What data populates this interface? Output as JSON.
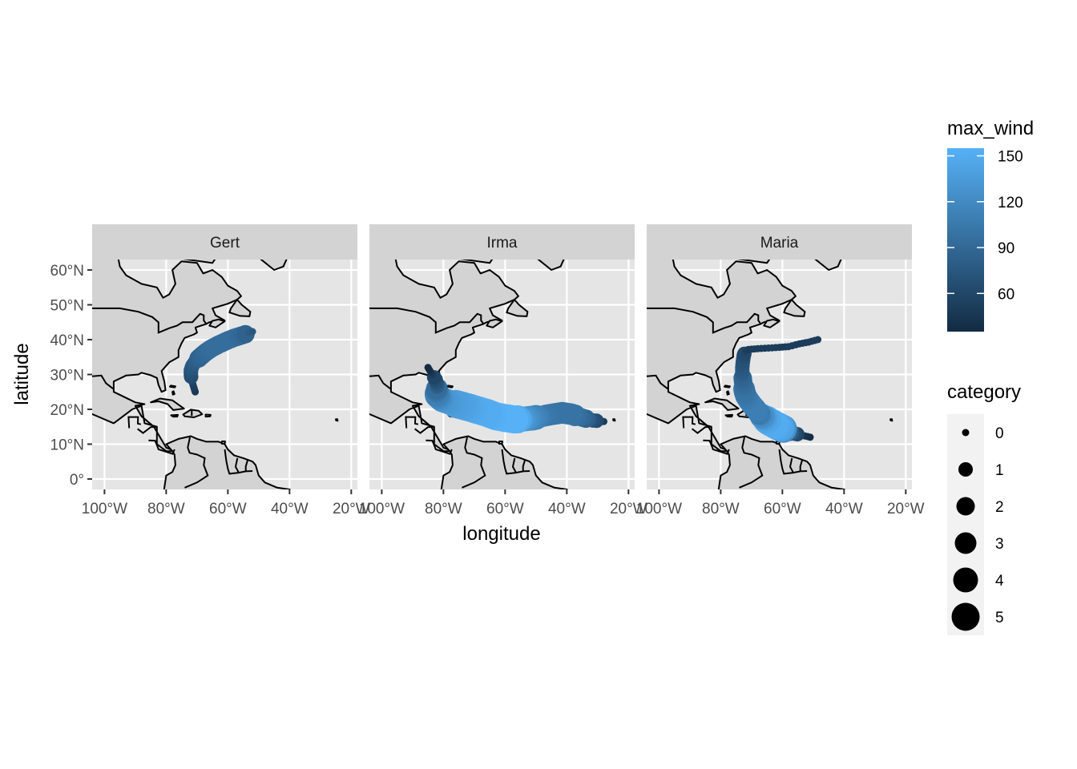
{
  "chart_data": {
    "type": "scatter",
    "facet_by": "storm",
    "panels": [
      {
        "label": "Gert",
        "points": [
          {
            "lon": -70.6,
            "lat": 25.0,
            "wind": 45,
            "cat": 0
          },
          {
            "lon": -71.0,
            "lat": 26.2,
            "wind": 50,
            "cat": 0
          },
          {
            "lon": -71.4,
            "lat": 27.3,
            "wind": 55,
            "cat": 0
          },
          {
            "lon": -71.7,
            "lat": 28.5,
            "wind": 60,
            "cat": 0
          },
          {
            "lon": -72.0,
            "lat": 29.8,
            "wind": 65,
            "cat": 1
          },
          {
            "lon": -72.0,
            "lat": 31.2,
            "wind": 70,
            "cat": 1
          },
          {
            "lon": -71.5,
            "lat": 32.5,
            "wind": 75,
            "cat": 1
          },
          {
            "lon": -70.5,
            "lat": 33.8,
            "wind": 80,
            "cat": 1
          },
          {
            "lon": -69.0,
            "lat": 35.0,
            "wind": 85,
            "cat": 2
          },
          {
            "lon": -67.3,
            "lat": 36.3,
            "wind": 90,
            "cat": 2
          },
          {
            "lon": -65.3,
            "lat": 37.5,
            "wind": 95,
            "cat": 2
          },
          {
            "lon": -63.0,
            "lat": 38.6,
            "wind": 95,
            "cat": 2
          },
          {
            "lon": -60.5,
            "lat": 39.6,
            "wind": 95,
            "cat": 2
          },
          {
            "lon": -58.0,
            "lat": 40.5,
            "wind": 95,
            "cat": 2
          },
          {
            "lon": -55.5,
            "lat": 41.2,
            "wind": 90,
            "cat": 2
          },
          {
            "lon": -52.0,
            "lat": 42.3,
            "wind": 75,
            "cat": 0
          }
        ]
      },
      {
        "label": "Irma",
        "points": [
          {
            "lon": -28.0,
            "lat": 16.5,
            "wind": 50,
            "cat": 0
          },
          {
            "lon": -31.5,
            "lat": 16.8,
            "wind": 70,
            "cat": 1
          },
          {
            "lon": -35.0,
            "lat": 17.6,
            "wind": 90,
            "cat": 2
          },
          {
            "lon": -38.5,
            "lat": 18.6,
            "wind": 100,
            "cat": 3
          },
          {
            "lon": -41.5,
            "lat": 19.0,
            "wind": 100,
            "cat": 3
          },
          {
            "lon": -44.5,
            "lat": 18.6,
            "wind": 100,
            "cat": 3
          },
          {
            "lon": -48.0,
            "lat": 18.0,
            "wind": 105,
            "cat": 3
          },
          {
            "lon": -51.0,
            "lat": 17.5,
            "wind": 115,
            "cat": 4
          },
          {
            "lon": -54.0,
            "lat": 17.2,
            "wind": 130,
            "cat": 4
          },
          {
            "lon": -57.0,
            "lat": 17.1,
            "wind": 155,
            "cat": 5
          },
          {
            "lon": -60.0,
            "lat": 17.5,
            "wind": 155,
            "cat": 5
          },
          {
            "lon": -63.0,
            "lat": 18.0,
            "wind": 155,
            "cat": 5
          },
          {
            "lon": -66.0,
            "lat": 19.0,
            "wind": 150,
            "cat": 5
          },
          {
            "lon": -69.0,
            "lat": 19.8,
            "wind": 150,
            "cat": 5
          },
          {
            "lon": -72.0,
            "lat": 20.6,
            "wind": 145,
            "cat": 5
          },
          {
            "lon": -75.0,
            "lat": 21.3,
            "wind": 140,
            "cat": 5
          },
          {
            "lon": -78.0,
            "lat": 22.0,
            "wind": 135,
            "cat": 4
          },
          {
            "lon": -80.5,
            "lat": 22.8,
            "wind": 130,
            "cat": 4
          },
          {
            "lon": -82.0,
            "lat": 24.0,
            "wind": 115,
            "cat": 4
          },
          {
            "lon": -82.2,
            "lat": 25.5,
            "wind": 100,
            "cat": 3
          },
          {
            "lon": -82.0,
            "lat": 26.8,
            "wind": 80,
            "cat": 1
          },
          {
            "lon": -82.5,
            "lat": 28.5,
            "wind": 65,
            "cat": 1
          },
          {
            "lon": -84.0,
            "lat": 30.5,
            "wind": 45,
            "cat": 0
          },
          {
            "lon": -85.0,
            "lat": 32.0,
            "wind": 35,
            "cat": 0
          }
        ]
      },
      {
        "label": "Maria",
        "points": [
          {
            "lon": -51.0,
            "lat": 12.0,
            "wind": 35,
            "cat": 0
          },
          {
            "lon": -53.5,
            "lat": 12.5,
            "wind": 45,
            "cat": 0
          },
          {
            "lon": -56.0,
            "lat": 13.0,
            "wind": 65,
            "cat": 1
          },
          {
            "lon": -58.5,
            "lat": 13.8,
            "wind": 90,
            "cat": 2
          },
          {
            "lon": -60.5,
            "lat": 14.7,
            "wind": 140,
            "cat": 5
          },
          {
            "lon": -62.5,
            "lat": 15.6,
            "wind": 150,
            "cat": 5
          },
          {
            "lon": -64.5,
            "lat": 16.6,
            "wind": 150,
            "cat": 5
          },
          {
            "lon": -66.0,
            "lat": 17.6,
            "wind": 135,
            "cat": 4
          },
          {
            "lon": -67.5,
            "lat": 18.7,
            "wind": 105,
            "cat": 3
          },
          {
            "lon": -68.5,
            "lat": 19.9,
            "wind": 110,
            "cat": 3
          },
          {
            "lon": -69.7,
            "lat": 21.1,
            "wind": 110,
            "cat": 3
          },
          {
            "lon": -70.8,
            "lat": 22.4,
            "wind": 110,
            "cat": 3
          },
          {
            "lon": -71.8,
            "lat": 23.8,
            "wind": 105,
            "cat": 3
          },
          {
            "lon": -72.3,
            "lat": 25.3,
            "wind": 100,
            "cat": 3
          },
          {
            "lon": -72.6,
            "lat": 26.9,
            "wind": 95,
            "cat": 2
          },
          {
            "lon": -72.8,
            "lat": 28.5,
            "wind": 90,
            "cat": 2
          },
          {
            "lon": -73.0,
            "lat": 30.2,
            "wind": 80,
            "cat": 1
          },
          {
            "lon": -73.0,
            "lat": 32.0,
            "wind": 75,
            "cat": 1
          },
          {
            "lon": -72.8,
            "lat": 33.8,
            "wind": 70,
            "cat": 1
          },
          {
            "lon": -72.5,
            "lat": 35.5,
            "wind": 65,
            "cat": 1
          },
          {
            "lon": -72.0,
            "lat": 36.8,
            "wind": 55,
            "cat": 0
          },
          {
            "lon": -71.0,
            "lat": 37.2,
            "wind": 50,
            "cat": 0
          },
          {
            "lon": -68.0,
            "lat": 37.4,
            "wind": 50,
            "cat": 0
          },
          {
            "lon": -64.5,
            "lat": 37.6,
            "wind": 50,
            "cat": 0
          },
          {
            "lon": -61.0,
            "lat": 37.8,
            "wind": 50,
            "cat": 0
          },
          {
            "lon": -58.0,
            "lat": 38.0,
            "wind": 50,
            "cat": 0
          },
          {
            "lon": -54.5,
            "lat": 38.8,
            "wind": 50,
            "cat": 0
          },
          {
            "lon": -51.5,
            "lat": 39.3,
            "wind": 50,
            "cat": 0
          },
          {
            "lon": -48.5,
            "lat": 40.0,
            "wind": 50,
            "cat": 0
          }
        ]
      }
    ],
    "x_ticks": [
      {
        "value": -100,
        "label": "100°W"
      },
      {
        "value": -80,
        "label": "80°W"
      },
      {
        "value": -60,
        "label": "60°W"
      },
      {
        "value": -40,
        "label": "40°W"
      },
      {
        "value": -20,
        "label": "20°W"
      }
    ],
    "y_ticks": [
      {
        "value": 0,
        "label": "0°"
      },
      {
        "value": 10,
        "label": "10°N"
      },
      {
        "value": 20,
        "label": "20°N"
      },
      {
        "value": 30,
        "label": "30°N"
      },
      {
        "value": 40,
        "label": "40°N"
      },
      {
        "value": 50,
        "label": "50°N"
      },
      {
        "value": 60,
        "label": "60°N"
      }
    ],
    "xlim": [
      -104,
      -18
    ],
    "ylim": [
      -3,
      63
    ],
    "xlabel": "longitude",
    "ylabel": "latitude",
    "color_legend": {
      "title": "max_wind",
      "range": [
        35,
        155
      ],
      "low_color": "#132B43",
      "high_color": "#56B1F7",
      "breaks": [
        {
          "value": 60,
          "label": "60"
        },
        {
          "value": 90,
          "label": "90"
        },
        {
          "value": 120,
          "label": "120"
        },
        {
          "value": 150,
          "label": "150"
        }
      ]
    },
    "size_legend": {
      "title": "category",
      "entries": [
        {
          "value": 0,
          "label": "0"
        },
        {
          "value": 1,
          "label": "1"
        },
        {
          "value": 2,
          "label": "2"
        },
        {
          "value": 3,
          "label": "3"
        },
        {
          "value": 4,
          "label": "4"
        },
        {
          "value": 5,
          "label": "5"
        }
      ]
    },
    "colors": {
      "panel_background": "#E5E5E5",
      "strip_background": "#D3D3D3",
      "gridline": "#FFFFFF",
      "land_fill": "#D3D3D3",
      "coastline": "#000000"
    }
  }
}
